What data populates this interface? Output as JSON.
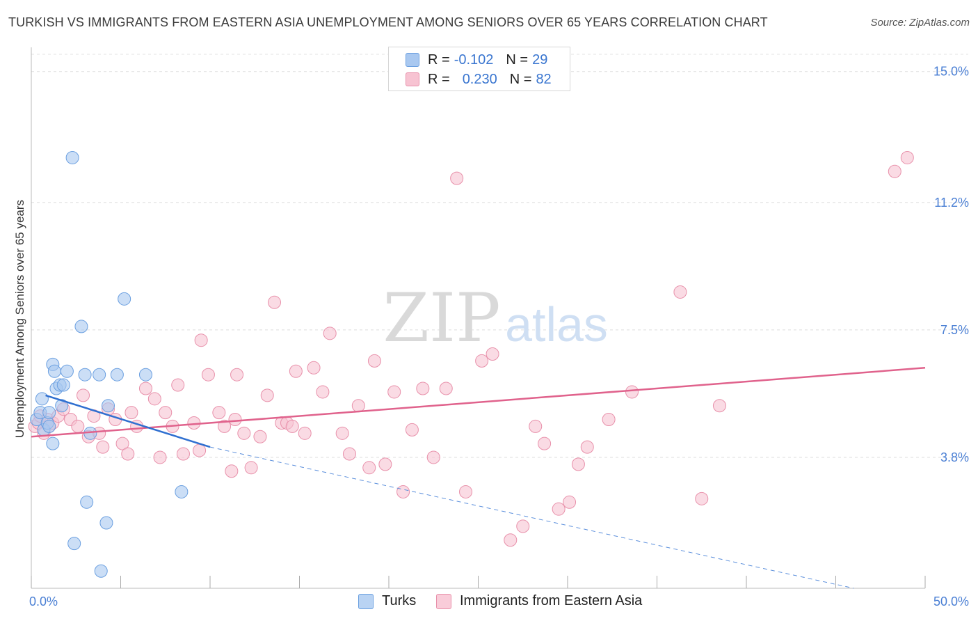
{
  "title": "TURKISH VS IMMIGRANTS FROM EASTERN ASIA UNEMPLOYMENT AMONG SENIORS OVER 65 YEARS CORRELATION CHART",
  "source": "Source: ZipAtlas.com",
  "watermark": {
    "zip": "ZIP",
    "atlas": "atlas"
  },
  "legend": {
    "rows": [
      {
        "r_label": "R =",
        "r_value": "-0.102",
        "n_label": "N =",
        "n_value": "29",
        "color": "#a9c8f0",
        "border": "#6a9fe0"
      },
      {
        "r_label": "R =",
        "r_value": "0.230",
        "n_label": "N =",
        "n_value": "82",
        "color": "#f7c3d2",
        "border": "#e890aa"
      }
    ]
  },
  "bottom_legend": [
    {
      "label": "Turks",
      "color": "#b9d3f3",
      "border": "#6a9fe0"
    },
    {
      "label": "Immigrants from Eastern Asia",
      "color": "#f9ccd9",
      "border": "#e890aa"
    }
  ],
  "chart_data": {
    "type": "scatter",
    "title": "TURKISH VS IMMIGRANTS FROM EASTERN ASIA UNEMPLOYMENT AMONG SENIORS OVER 65 YEARS CORRELATION CHART",
    "xlabel": "",
    "ylabel": "Unemployment Among Seniors over 65 years",
    "xlim": [
      0,
      50
    ],
    "ylim": [
      0,
      15.5
    ],
    "x_tick_labels": [
      "0.0%",
      "50.0%"
    ],
    "y_ticks": [
      3.8,
      7.5,
      11.2,
      15.0
    ],
    "y_tick_labels": [
      "3.8%",
      "7.5%",
      "11.2%",
      "15.0%"
    ],
    "grid": true,
    "series": [
      {
        "name": "Turks",
        "color": "#a9c8f0",
        "stroke": "#6a9fe0",
        "points": [
          [
            0.3,
            4.9
          ],
          [
            0.5,
            5.1
          ],
          [
            0.6,
            5.5
          ],
          [
            0.7,
            4.6
          ],
          [
            0.9,
            4.8
          ],
          [
            1.0,
            4.7
          ],
          [
            1.0,
            5.1
          ],
          [
            1.2,
            4.2
          ],
          [
            1.2,
            6.5
          ],
          [
            1.3,
            6.3
          ],
          [
            1.4,
            5.8
          ],
          [
            1.6,
            5.9
          ],
          [
            1.7,
            5.3
          ],
          [
            1.8,
            5.9
          ],
          [
            2.0,
            6.3
          ],
          [
            2.3,
            12.5
          ],
          [
            2.4,
            1.3
          ],
          [
            2.8,
            7.6
          ],
          [
            3.0,
            6.2
          ],
          [
            3.1,
            2.5
          ],
          [
            3.3,
            4.5
          ],
          [
            3.8,
            6.2
          ],
          [
            3.9,
            0.5
          ],
          [
            4.2,
            1.9
          ],
          [
            4.3,
            5.3
          ],
          [
            4.8,
            6.2
          ],
          [
            5.2,
            8.4
          ],
          [
            6.4,
            6.2
          ],
          [
            8.4,
            2.8
          ]
        ],
        "trend": {
          "x": [
            0.8,
            10
          ],
          "y": [
            5.6,
            4.1
          ]
        },
        "trend_extension": {
          "x": [
            10,
            46
          ],
          "y": [
            4.1,
            0.0
          ]
        }
      },
      {
        "name": "Immigrants from Eastern Asia",
        "color": "#f7c3d2",
        "stroke": "#e890aa",
        "points": [
          [
            0.2,
            4.7
          ],
          [
            0.4,
            4.8
          ],
          [
            0.5,
            5.0
          ],
          [
            0.7,
            4.5
          ],
          [
            0.9,
            4.9
          ],
          [
            1.0,
            4.7
          ],
          [
            1.2,
            4.8
          ],
          [
            1.5,
            5.0
          ],
          [
            1.8,
            5.2
          ],
          [
            2.2,
            4.9
          ],
          [
            2.6,
            4.7
          ],
          [
            2.9,
            5.6
          ],
          [
            3.2,
            4.4
          ],
          [
            3.5,
            5.0
          ],
          [
            3.8,
            4.5
          ],
          [
            4.0,
            4.1
          ],
          [
            4.3,
            5.2
          ],
          [
            4.7,
            4.9
          ],
          [
            5.1,
            4.2
          ],
          [
            5.4,
            3.9
          ],
          [
            5.6,
            5.1
          ],
          [
            5.9,
            4.7
          ],
          [
            6.4,
            5.8
          ],
          [
            6.9,
            5.5
          ],
          [
            7.2,
            3.8
          ],
          [
            7.5,
            5.1
          ],
          [
            7.9,
            4.7
          ],
          [
            8.2,
            5.9
          ],
          [
            8.5,
            3.9
          ],
          [
            9.1,
            4.8
          ],
          [
            9.5,
            7.2
          ],
          [
            9.9,
            6.2
          ],
          [
            10.5,
            5.1
          ],
          [
            10.8,
            4.7
          ],
          [
            11.2,
            3.4
          ],
          [
            11.5,
            6.2
          ],
          [
            11.9,
            4.5
          ],
          [
            12.3,
            3.5
          ],
          [
            12.8,
            4.4
          ],
          [
            13.2,
            5.6
          ],
          [
            13.6,
            8.3
          ],
          [
            14.0,
            4.8
          ],
          [
            14.3,
            4.8
          ],
          [
            14.8,
            6.3
          ],
          [
            15.3,
            4.5
          ],
          [
            15.8,
            6.4
          ],
          [
            16.3,
            5.7
          ],
          [
            16.7,
            7.4
          ],
          [
            17.4,
            4.5
          ],
          [
            17.8,
            3.9
          ],
          [
            18.3,
            5.3
          ],
          [
            18.9,
            3.5
          ],
          [
            19.2,
            6.6
          ],
          [
            19.8,
            3.6
          ],
          [
            20.3,
            5.7
          ],
          [
            20.8,
            2.8
          ],
          [
            21.3,
            4.6
          ],
          [
            21.9,
            5.8
          ],
          [
            22.5,
            3.8
          ],
          [
            23.2,
            5.8
          ],
          [
            23.8,
            11.9
          ],
          [
            24.3,
            2.8
          ],
          [
            25.2,
            6.6
          ],
          [
            25.8,
            6.8
          ],
          [
            26.8,
            1.4
          ],
          [
            27.5,
            1.8
          ],
          [
            28.2,
            4.7
          ],
          [
            28.7,
            4.2
          ],
          [
            29.5,
            2.3
          ],
          [
            30.1,
            2.5
          ],
          [
            30.6,
            3.6
          ],
          [
            31.1,
            4.1
          ],
          [
            32.3,
            4.9
          ],
          [
            33.6,
            5.7
          ],
          [
            36.3,
            8.6
          ],
          [
            37.5,
            2.6
          ],
          [
            38.5,
            5.3
          ],
          [
            48.3,
            12.1
          ],
          [
            49.0,
            12.5
          ],
          [
            11.4,
            4.9
          ],
          [
            14.6,
            4.7
          ],
          [
            9.4,
            4.0
          ]
        ],
        "trend": {
          "x": [
            0,
            50
          ],
          "y": [
            4.4,
            6.4
          ]
        }
      }
    ]
  }
}
